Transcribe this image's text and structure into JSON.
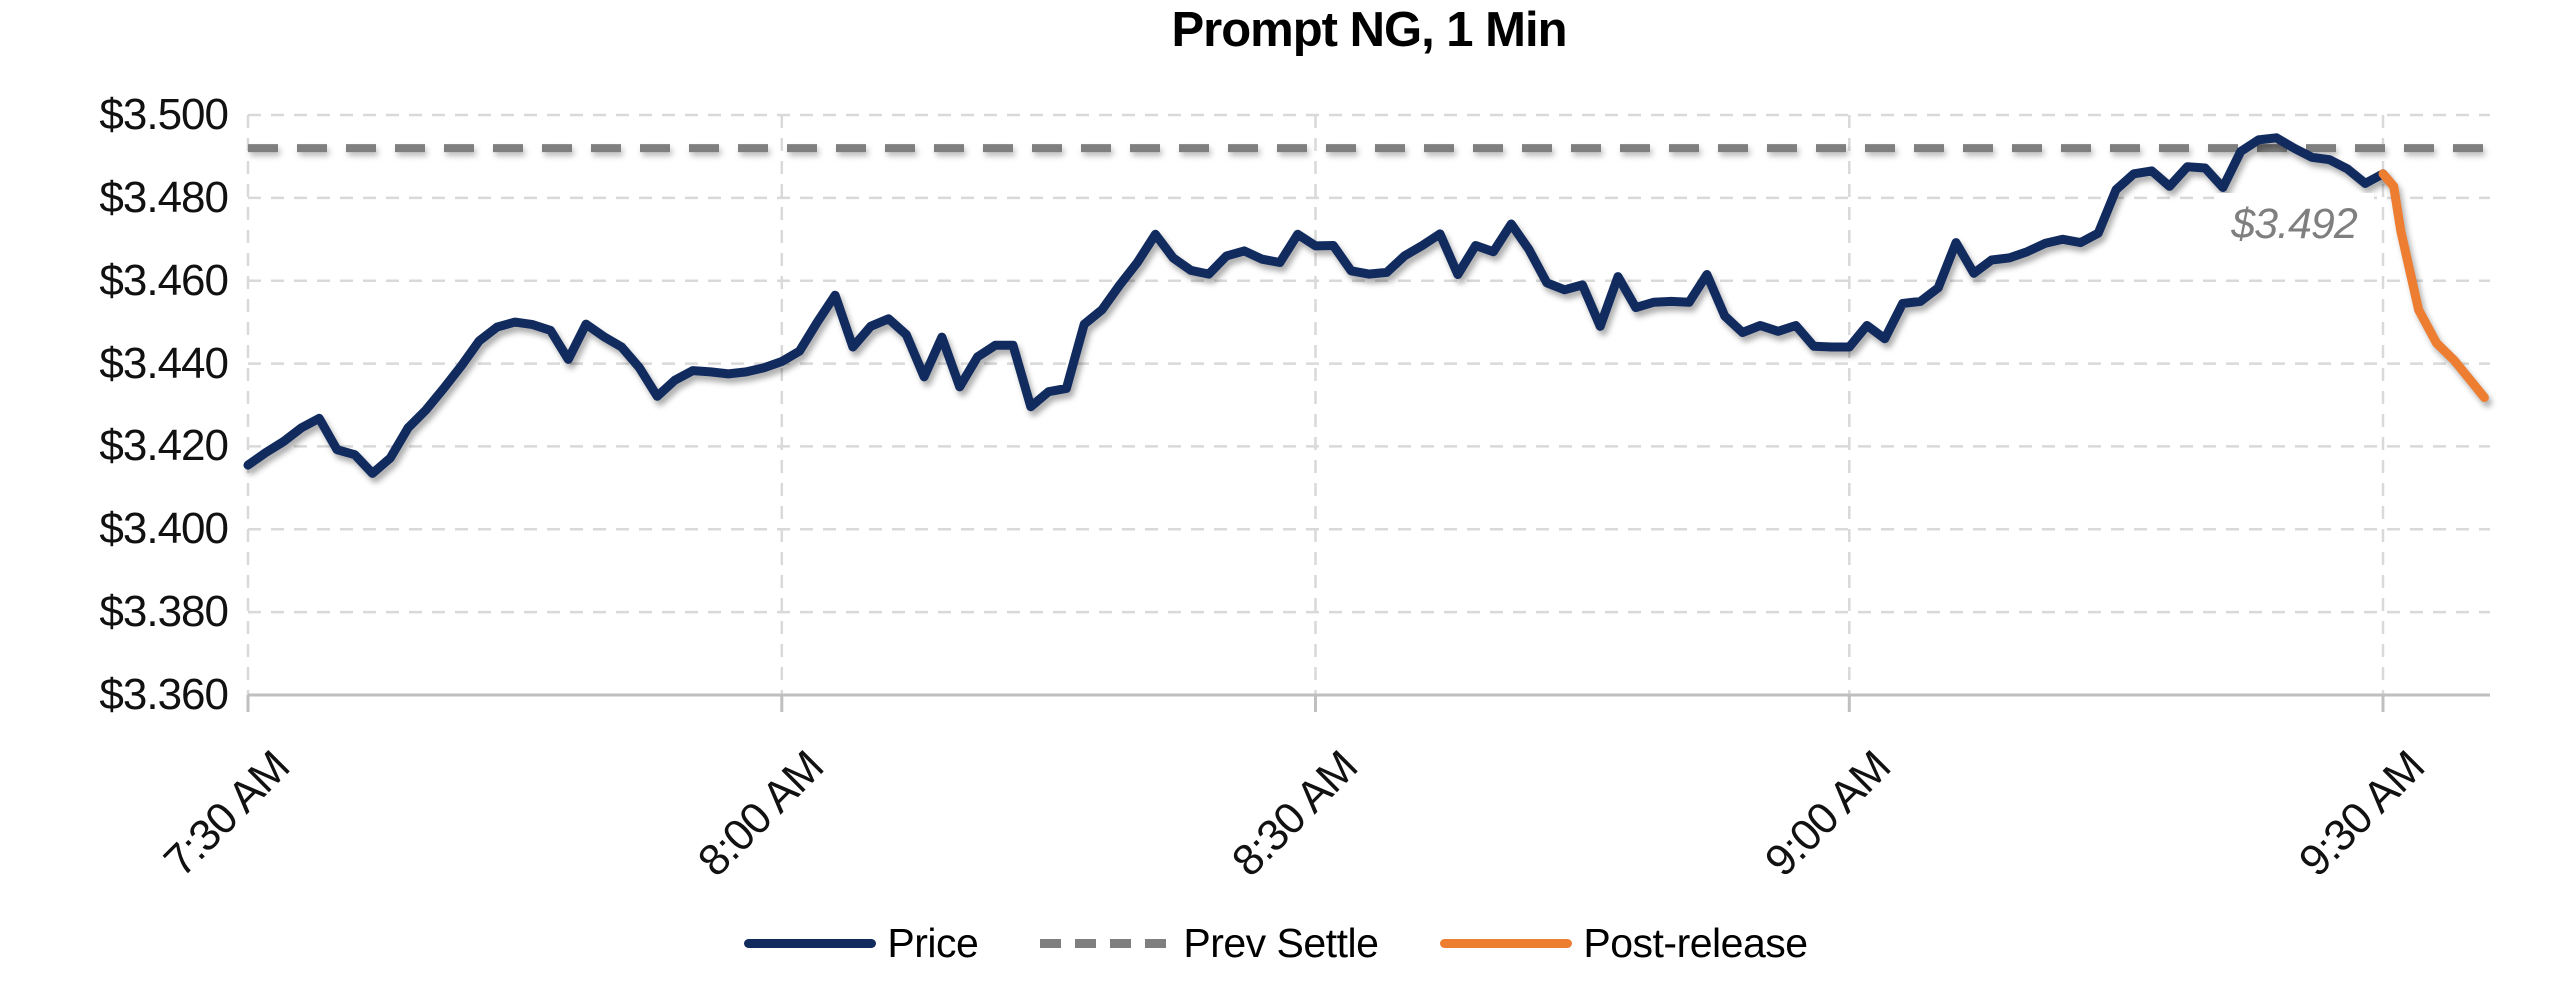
{
  "title": "Prompt NG, 1 Min",
  "annotation": {
    "text": "$3.492"
  },
  "legend": {
    "items": [
      {
        "label": "Price",
        "color": "#122b5e",
        "style": "solid"
      },
      {
        "label": "Prev Settle",
        "color": "#7f7f7f",
        "style": "dashed"
      },
      {
        "label": "Post-release",
        "color": "#ed7d31",
        "style": "solid"
      }
    ]
  },
  "colors": {
    "price": "#122b5e",
    "prev_settle": "#7f7f7f",
    "post_release": "#ed7d31",
    "gridline": "#d9d9d9",
    "axis": "#bfbfbf",
    "annotation_text": "#7f7f7f",
    "title_text": "#000000",
    "tick_text": "#111111"
  },
  "chart_data": {
    "type": "line",
    "title": "Prompt NG, 1 Min",
    "xlabel": "",
    "ylabel": "",
    "grid": true,
    "legend_position": "bottom",
    "x_axis": {
      "unit": "minutes after 7:30 AM",
      "tick_minutes": [
        0,
        30,
        60,
        90,
        120
      ],
      "tick_labels": [
        "7:30 AM",
        "8:00 AM",
        "8:30 AM",
        "9:00 AM",
        "9:30 AM"
      ],
      "range_minutes": [
        0,
        126
      ]
    },
    "y_axis": {
      "tick_values": [
        3.5,
        3.48,
        3.46,
        3.44,
        3.42,
        3.4,
        3.38,
        3.36
      ],
      "tick_labels": [
        "$3.500",
        "$3.480",
        "$3.460",
        "$3.440",
        "$3.420",
        "$3.400",
        "$3.380",
        "$3.360"
      ],
      "range": [
        3.36,
        3.5
      ]
    },
    "prev_settle_value": 3.492,
    "annotation_value_label": "$3.492",
    "series": [
      {
        "name": "Price",
        "color": "#122b5e",
        "style": "solid",
        "points": [
          [
            0,
            3.4155
          ],
          [
            1,
            3.4185
          ],
          [
            2,
            3.4212
          ],
          [
            3,
            3.4245
          ],
          [
            4,
            3.4268
          ],
          [
            5,
            3.4192
          ],
          [
            6,
            3.418
          ],
          [
            7,
            3.4135
          ],
          [
            8,
            3.4172
          ],
          [
            9,
            3.4245
          ],
          [
            10,
            3.4288
          ],
          [
            11,
            3.434
          ],
          [
            12,
            3.4395
          ],
          [
            13,
            3.4455
          ],
          [
            14,
            3.4488
          ],
          [
            15,
            3.45
          ],
          [
            16,
            3.4494
          ],
          [
            17,
            3.448
          ],
          [
            18,
            3.441
          ],
          [
            19,
            3.4495
          ],
          [
            20,
            3.4465
          ],
          [
            21,
            3.444
          ],
          [
            22,
            3.439
          ],
          [
            23,
            3.4321
          ],
          [
            24,
            3.436
          ],
          [
            25,
            3.4383
          ],
          [
            26,
            3.438
          ],
          [
            27,
            3.4375
          ],
          [
            28,
            3.438
          ],
          [
            29,
            3.439
          ],
          [
            30,
            3.4405
          ],
          [
            31,
            3.443
          ],
          [
            32,
            3.45
          ],
          [
            33,
            3.4565
          ],
          [
            34,
            3.444
          ],
          [
            35,
            3.449
          ],
          [
            36,
            3.4508
          ],
          [
            37,
            3.447
          ],
          [
            38,
            3.4368
          ],
          [
            39,
            3.4464
          ],
          [
            40,
            3.4344
          ],
          [
            41,
            3.4416
          ],
          [
            42,
            3.4444
          ],
          [
            43,
            3.4444
          ],
          [
            44,
            3.4296
          ],
          [
            45,
            3.4332
          ],
          [
            46,
            3.434
          ],
          [
            47,
            3.4495
          ],
          [
            48,
            3.453
          ],
          [
            49,
            3.459
          ],
          [
            50,
            3.4645
          ],
          [
            51,
            3.4712
          ],
          [
            52,
            3.4655
          ],
          [
            53,
            3.4625
          ],
          [
            54,
            3.4616
          ],
          [
            55,
            3.466
          ],
          [
            56,
            3.4672
          ],
          [
            57,
            3.4652
          ],
          [
            58,
            3.4644
          ],
          [
            59,
            3.4712
          ],
          [
            60,
            3.4684
          ],
          [
            61,
            3.4685
          ],
          [
            62,
            3.4624
          ],
          [
            63,
            3.4616
          ],
          [
            64,
            3.462
          ],
          [
            65,
            3.466
          ],
          [
            66,
            3.4685
          ],
          [
            67,
            3.4713
          ],
          [
            68,
            3.4615
          ],
          [
            69,
            3.4685
          ],
          [
            70,
            3.467
          ],
          [
            71,
            3.4737
          ],
          [
            72,
            3.4675
          ],
          [
            73,
            3.4595
          ],
          [
            74,
            3.4578
          ],
          [
            75,
            3.459
          ],
          [
            76,
            3.449
          ],
          [
            77,
            3.461
          ],
          [
            78,
            3.4535
          ],
          [
            79,
            3.4548
          ],
          [
            80,
            3.455
          ],
          [
            81,
            3.4548
          ],
          [
            82,
            3.4615
          ],
          [
            83,
            3.4515
          ],
          [
            84,
            3.4475
          ],
          [
            85,
            3.4492
          ],
          [
            86,
            3.4478
          ],
          [
            87,
            3.4492
          ],
          [
            88,
            3.4442
          ],
          [
            89,
            3.444
          ],
          [
            90,
            3.444
          ],
          [
            91,
            3.4492
          ],
          [
            92,
            3.446
          ],
          [
            93,
            3.4545
          ],
          [
            94,
            3.455
          ],
          [
            95,
            3.4583
          ],
          [
            96,
            3.4692
          ],
          [
            97,
            3.4618
          ],
          [
            98,
            3.465
          ],
          [
            99,
            3.4655
          ],
          [
            100,
            3.467
          ],
          [
            101,
            3.469
          ],
          [
            102,
            3.47
          ],
          [
            103,
            3.4692
          ],
          [
            104,
            3.4715
          ],
          [
            105,
            3.482
          ],
          [
            106,
            3.4858
          ],
          [
            107,
            3.4865
          ],
          [
            108,
            3.4828
          ],
          [
            109,
            3.4875
          ],
          [
            110,
            3.4872
          ],
          [
            111,
            3.4825
          ],
          [
            112,
            3.4912
          ],
          [
            113,
            3.494
          ],
          [
            114,
            3.4945
          ],
          [
            115,
            3.492
          ],
          [
            116,
            3.4898
          ],
          [
            117,
            3.4892
          ],
          [
            118,
            3.487
          ],
          [
            119,
            3.4835
          ],
          [
            120,
            3.4858
          ]
        ]
      },
      {
        "name": "Prev Settle",
        "color": "#7f7f7f",
        "style": "dashed",
        "value": 3.492
      },
      {
        "name": "Post-release",
        "color": "#ed7d31",
        "style": "solid",
        "points": [
          [
            120,
            3.4858
          ],
          [
            120.6,
            3.4828
          ],
          [
            121,
            3.472
          ],
          [
            122,
            3.453
          ],
          [
            123,
            3.445
          ],
          [
            124,
            3.4408
          ],
          [
            125,
            3.4355
          ],
          [
            125.7,
            3.4318
          ]
        ]
      }
    ]
  }
}
